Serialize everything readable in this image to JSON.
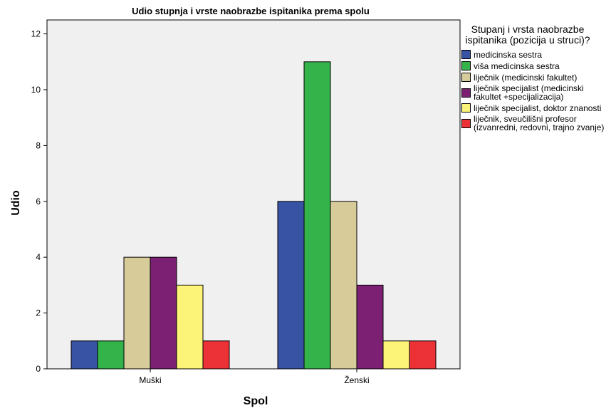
{
  "chart_data": {
    "type": "bar",
    "title": "Udio stupnja i vrste naobrazbe ispitanika prema spolu",
    "xlabel": "Spol",
    "ylabel": "Udio",
    "categories": [
      "Muški",
      "Ženski"
    ],
    "ylim": [
      0,
      12.5
    ],
    "yticks": [
      0,
      2,
      4,
      6,
      8,
      10,
      12
    ],
    "grid": false,
    "legend_position": "right",
    "legend_title": "Stupanj i vrsta naobrazbe ispitanika (pozicija u struci)?",
    "series": [
      {
        "name": "medicinska sestra",
        "color": "#3953a4",
        "values": [
          1,
          6
        ]
      },
      {
        "name": "viša medicinska sestra",
        "color": "#33b34a",
        "values": [
          1,
          11
        ]
      },
      {
        "name": "liječnik (medicinski fakultet)",
        "color": "#d7cb9a",
        "values": [
          4,
          6
        ]
      },
      {
        "name": "liječnik specijalist (medicinski fakultet +specijalizacija)",
        "color": "#7b2072",
        "values": [
          4,
          3
        ]
      },
      {
        "name": "liječnik specijalist, doktor znanosti",
        "color": "#fcf479",
        "values": [
          3,
          1
        ]
      },
      {
        "name": "liječnik, sveučilišni profesor (izvanredni, redovni, trajno zvanje)",
        "color": "#ec3237",
        "values": [
          1,
          1
        ]
      }
    ],
    "plot_background": "#f0f0f0"
  }
}
